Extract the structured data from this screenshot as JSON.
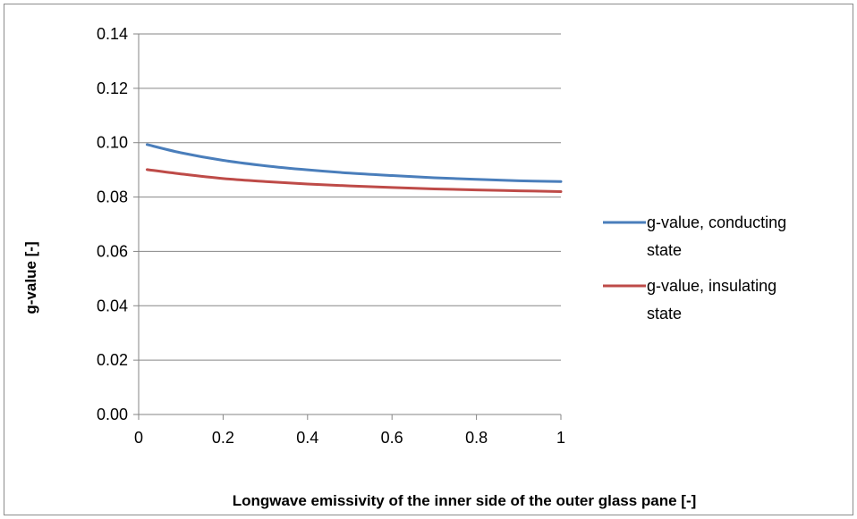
{
  "chart_data": {
    "type": "line",
    "title": "",
    "xlabel": "Longwave emissivity of the inner side of the outer glass pane [-]",
    "ylabel": "g-value [-]",
    "xlim": [
      0,
      1
    ],
    "ylim": [
      0,
      0.14
    ],
    "x_ticks": [
      "0",
      "0.2",
      "0.4",
      "0.6",
      "0.8",
      "1"
    ],
    "y_ticks": [
      "0.00",
      "0.02",
      "0.04",
      "0.06",
      "0.08",
      "0.10",
      "0.12",
      "0.14"
    ],
    "grid": "horizontal",
    "legend_position": "right",
    "series": [
      {
        "name": "g-value, conducting state",
        "color": "#4a7ebb",
        "x": [
          0.02,
          0.1,
          0.2,
          0.3,
          0.4,
          0.5,
          0.6,
          0.7,
          0.8,
          0.9,
          1.0
        ],
        "y": [
          0.0993,
          0.0963,
          0.0935,
          0.0915,
          0.09,
          0.0888,
          0.0879,
          0.0871,
          0.0865,
          0.086,
          0.0857
        ]
      },
      {
        "name": "g-value, insulating state",
        "color": "#be4b48",
        "x": [
          0.02,
          0.1,
          0.2,
          0.3,
          0.4,
          0.5,
          0.6,
          0.7,
          0.8,
          0.9,
          1.0
        ],
        "y": [
          0.0901,
          0.0885,
          0.0868,
          0.0857,
          0.0848,
          0.0841,
          0.0835,
          0.083,
          0.0826,
          0.0823,
          0.082
        ]
      }
    ]
  }
}
